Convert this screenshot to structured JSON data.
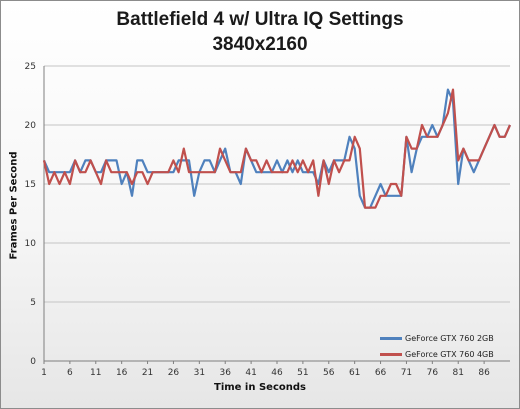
{
  "chart_data": {
    "type": "line",
    "title": "Battlefield 4 w/ Ultra IQ Settings",
    "subtitle": "3840x2160",
    "xlabel": "Time in Seconds",
    "ylabel": "Frames Per Second",
    "xlim": [
      1,
      91
    ],
    "ylim": [
      0,
      25
    ],
    "ytick_step": 5,
    "xticks": [
      1,
      6,
      11,
      16,
      21,
      26,
      31,
      36,
      41,
      46,
      51,
      56,
      61,
      66,
      71,
      76,
      81,
      86
    ],
    "grid": "horizontal",
    "legend_position": "bottom-right",
    "series": [
      {
        "name": "GeForce GTX 760 2GB",
        "color": "#4f81bd",
        "values": [
          17,
          16,
          16,
          16,
          16,
          16,
          17,
          16,
          17,
          17,
          16,
          16,
          17,
          17,
          17,
          15,
          16,
          14,
          17,
          17,
          16,
          16,
          16,
          16,
          16,
          16,
          17,
          17,
          17,
          14,
          16,
          17,
          17,
          16,
          17,
          18,
          16,
          16,
          15,
          18,
          17,
          16,
          16,
          16,
          16,
          17,
          16,
          17,
          16,
          17,
          16,
          16,
          16,
          15,
          17,
          16,
          17,
          17,
          17,
          19,
          18,
          14,
          13,
          13,
          14,
          15,
          14,
          14,
          14,
          14,
          19,
          16,
          18,
          19,
          19,
          20,
          19,
          20,
          23,
          22,
          15,
          18,
          17,
          16,
          17,
          18,
          19,
          20,
          19,
          19,
          20
        ]
      },
      {
        "name": "GeForce GTX 760 4GB",
        "color": "#c0504d",
        "values": [
          17,
          15,
          16,
          15,
          16,
          15,
          17,
          16,
          16,
          17,
          16,
          15,
          17,
          16,
          16,
          16,
          16,
          15,
          16,
          16,
          15,
          16,
          16,
          16,
          16,
          17,
          16,
          18,
          16,
          16,
          16,
          16,
          16,
          16,
          18,
          17,
          16,
          16,
          16,
          18,
          17,
          17,
          16,
          17,
          16,
          16,
          16,
          16,
          17,
          16,
          17,
          16,
          17,
          14,
          17,
          15,
          17,
          16,
          17,
          17,
          19,
          18,
          13,
          13,
          13,
          14,
          14,
          15,
          15,
          14,
          19,
          18,
          18,
          20,
          19,
          19,
          19,
          20,
          21,
          23,
          17,
          18,
          17,
          17,
          17,
          18,
          19,
          20,
          19,
          19,
          20
        ]
      }
    ]
  }
}
